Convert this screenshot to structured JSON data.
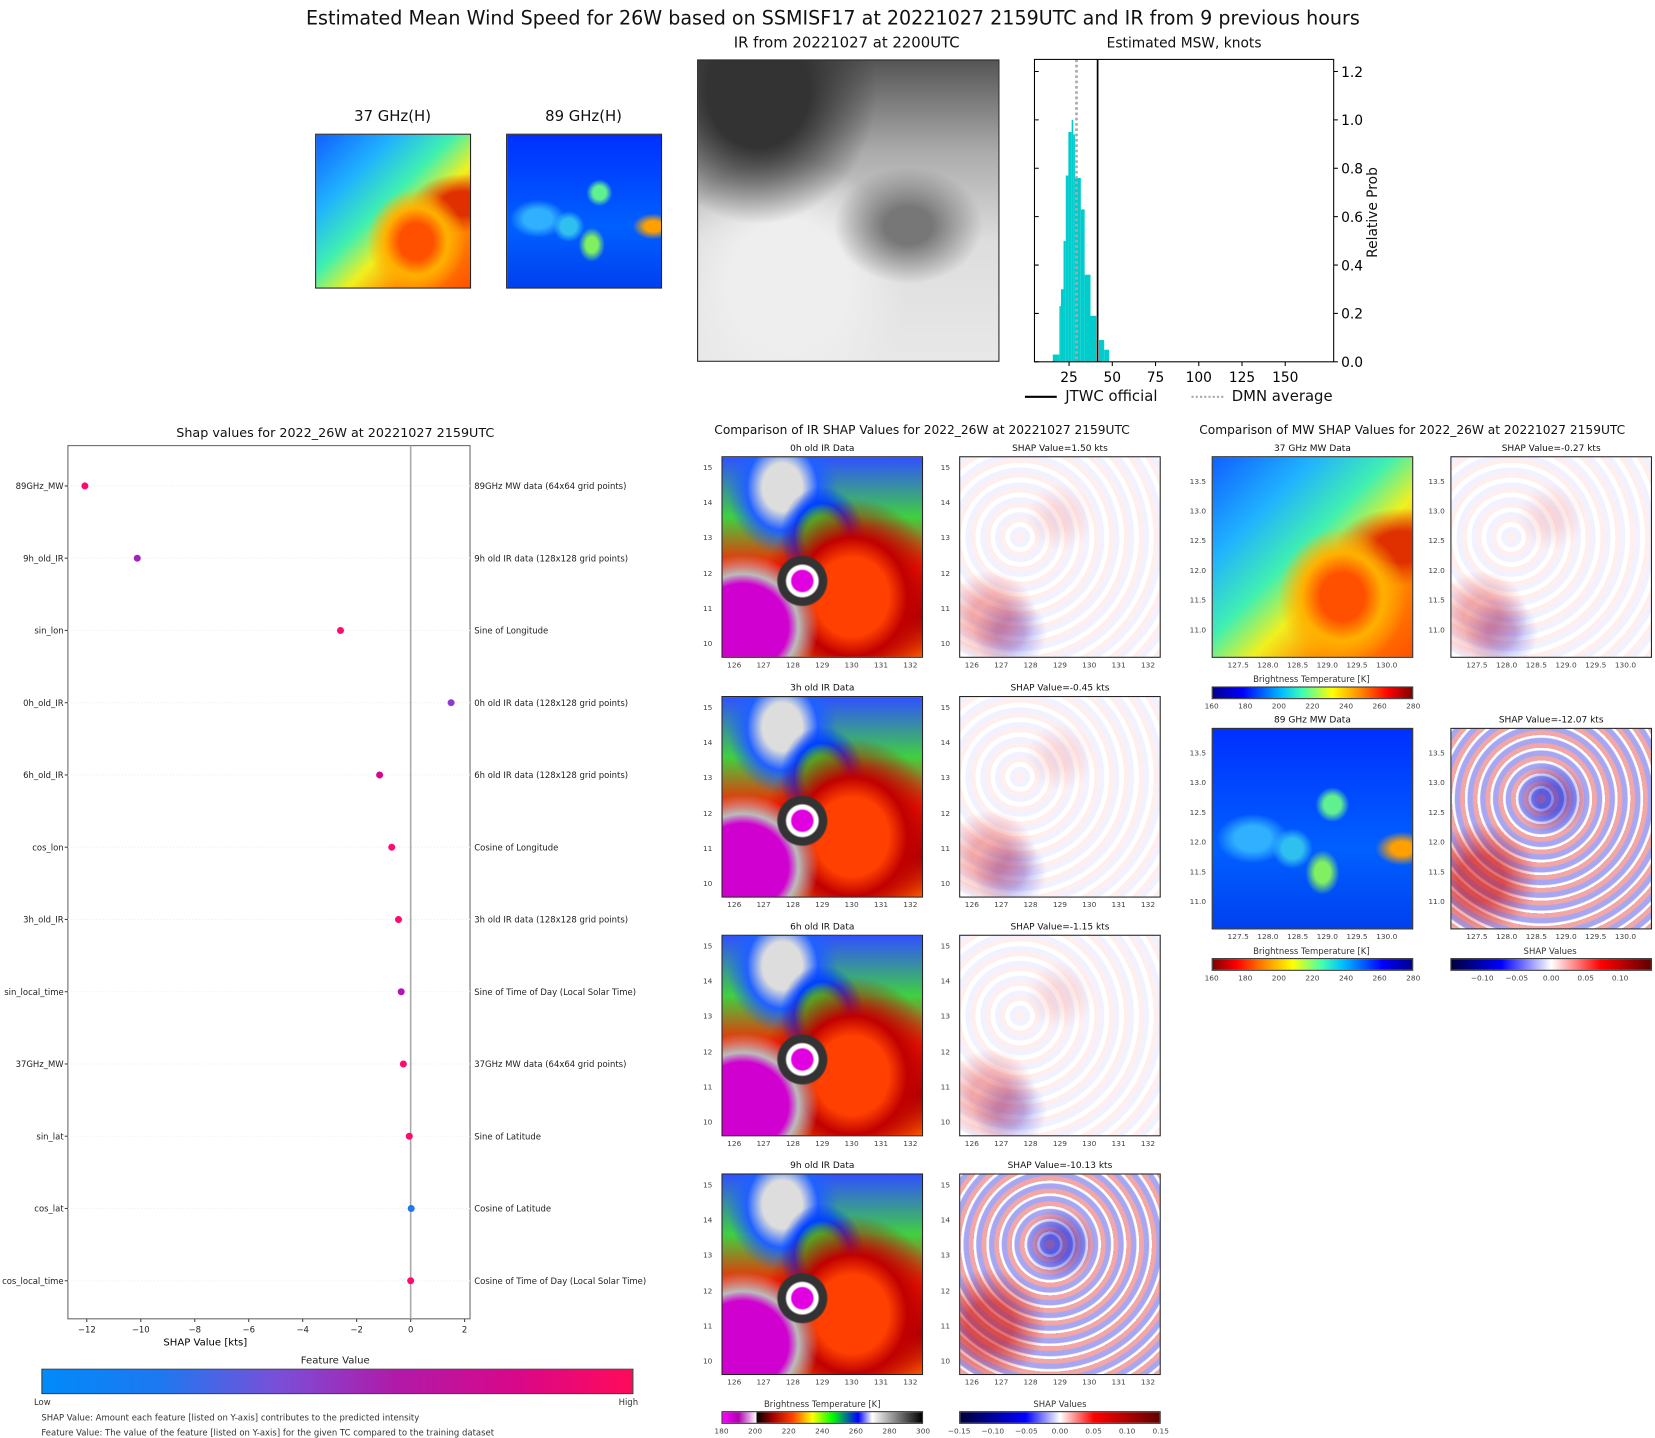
{
  "title": "Estimated Mean Wind Speed for 26W based on SSMISF17 at 20221027 2159UTC and IR from 9 previous hours",
  "top_panels": {
    "mw37_title": "37 GHz(H)",
    "mw89_title": "89 GHz(H)",
    "ir_title": "IR from 20221027 at 2200UTC"
  },
  "chart_data": [
    {
      "type": "bar",
      "title": "Estimated MSW, knots",
      "ylabel": "Relative Prob",
      "xlim": [
        5,
        178
      ],
      "ylim": [
        0,
        1.25
      ],
      "xticks": [
        "25",
        "50",
        "75",
        "100",
        "125",
        "150"
      ],
      "xtick_values": [
        25,
        50,
        75,
        100,
        125,
        150
      ],
      "yticks": [
        "0.0",
        "0.2",
        "0.4",
        "0.6",
        "0.8",
        "1.0",
        "1.2"
      ],
      "ytick_values": [
        0,
        0.2,
        0.4,
        0.6,
        0.8,
        1.0,
        1.2
      ],
      "bins": [
        [
          15.6,
          19.4,
          0.03
        ],
        [
          19.4,
          20.3,
          0.23
        ],
        [
          20.3,
          21.8,
          0.3
        ],
        [
          21.8,
          23.1,
          0.5
        ],
        [
          23.1,
          24.6,
          0.77
        ],
        [
          24.6,
          26.5,
          0.95
        ],
        [
          26.5,
          27.4,
          1.0
        ],
        [
          27.4,
          28.4,
          0.94
        ],
        [
          28.4,
          31.8,
          0.76
        ],
        [
          31.8,
          34.0,
          0.63
        ],
        [
          34.0,
          37.4,
          0.36
        ],
        [
          37.4,
          40.8,
          0.19
        ],
        [
          42.3,
          45.3,
          0.09
        ],
        [
          45.3,
          48.1,
          0.05
        ]
      ],
      "jtwc_official": 41.5,
      "dmn_average": 29.3,
      "color": "#00cccc",
      "legend": {
        "jtwc": "JTWC official",
        "dmn": "DMN average",
        "placement": "bottom"
      }
    },
    {
      "type": "scatter",
      "title": "Shap values for 2022_26W at 20221027 2159UTC",
      "xlabel": "SHAP Value [kts]",
      "xlim": [
        -12.7,
        2.2
      ],
      "xticks": [
        "−12",
        "−10",
        "−8",
        "−6",
        "−4",
        "−2",
        "0",
        "2"
      ],
      "xtick_values": [
        -12,
        -10,
        -8,
        -6,
        -4,
        -2,
        0,
        2
      ],
      "features": [
        {
          "name": "89GHz_MW",
          "desc": "89GHz MW data (64x64 grid points)",
          "shap": -12.07,
          "color": "#ff0a6e"
        },
        {
          "name": "9h_old_IR",
          "desc": "9h old IR data (128x128 grid points)",
          "shap": -10.13,
          "color": "#a61fc4"
        },
        {
          "name": "sin_lon",
          "desc": "Sine of Longitude",
          "shap": -2.6,
          "color": "#ff0a6e"
        },
        {
          "name": "0h_old_IR",
          "desc": "0h old IR data (128x128 grid points)",
          "shap": 1.5,
          "color": "#8f38d6"
        },
        {
          "name": "6h_old_IR",
          "desc": "6h old IR data (128x128 grid points)",
          "shap": -1.15,
          "color": "#d7068e"
        },
        {
          "name": "cos_lon",
          "desc": "Cosine of Longitude",
          "shap": -0.7,
          "color": "#ff0a6e"
        },
        {
          "name": "3h_old_IR",
          "desc": "3h old IR data (128x128 grid points)",
          "shap": -0.45,
          "color": "#ff0a6e"
        },
        {
          "name": "sin_local_time",
          "desc": "Sine of Time of Day (Local Solar Time)",
          "shap": -0.35,
          "color": "#b316b5"
        },
        {
          "name": "37GHz_MW",
          "desc": "37GHz MW data (64x64 grid points)",
          "shap": -0.27,
          "color": "#ff0a6e"
        },
        {
          "name": "sin_lat",
          "desc": "Sine of Latitude",
          "shap": -0.05,
          "color": "#ff0a6e"
        },
        {
          "name": "cos_lat",
          "desc": "Cosine of Latitude",
          "shap": 0.02,
          "color": "#1e78f0"
        },
        {
          "name": "cos_local_time",
          "desc": "Cosine of Time of Day (Local Solar Time)",
          "shap": 0.0,
          "color": "#ff0a6e"
        }
      ],
      "colorbar": {
        "title": "Feature Value",
        "low": "Low",
        "high": "High"
      }
    }
  ],
  "notes": [
    "SHAP Value: Amount each feature [listed on Y-axis] contributes to the predicted intensity",
    "Feature Value: The value of the feature [listed on Y-axis] for the given TC compared to the training dataset"
  ],
  "ir_compare": {
    "title": "Comparison of IR SHAP Values for 2022_26W at 20221027 2159UTC",
    "rows": [
      {
        "data": "0h old IR Data",
        "shap": "SHAP Value=1.50 kts"
      },
      {
        "data": "3h old IR Data",
        "shap": "SHAP Value=-0.45 kts"
      },
      {
        "data": "6h old IR Data",
        "shap": "SHAP Value=-1.15 kts"
      },
      {
        "data": "9h old IR Data",
        "shap": "SHAP Value=-10.13 kts"
      }
    ],
    "xticks": [
      "126",
      "127",
      "128",
      "129",
      "130",
      "131",
      "132"
    ],
    "yticks": [
      "15",
      "14",
      "13",
      "12",
      "11",
      "10"
    ],
    "cb_bt_label": "Brightness Temperature [K]",
    "cb_bt_ticks": [
      "180",
      "200",
      "220",
      "240",
      "260",
      "280",
      "300"
    ],
    "cb_shap_label": "SHAP Values",
    "cb_shap_ticks": [
      "−0.15",
      "−0.10",
      "−0.05",
      "0.00",
      "0.05",
      "0.10",
      "0.15"
    ]
  },
  "mw_compare": {
    "title": "Comparison of MW SHAP Values for 2022_26W at 20221027 2159UTC",
    "rows": [
      {
        "data": "37 GHz MW Data",
        "shap": "SHAP Value=-0.27 kts"
      },
      {
        "data": "89 GHz MW Data",
        "shap": "SHAP Value=-12.07 kts"
      }
    ],
    "xticks": [
      "127.5",
      "128.0",
      "128.5",
      "129.0",
      "129.5",
      "130.0"
    ],
    "yticks": [
      "13.5",
      "13.0",
      "12.5",
      "12.0",
      "11.5",
      "11.0"
    ],
    "cb_bt_label": "Brightness Temperature [K]",
    "cb_bt_ticks": [
      "160",
      "180",
      "200",
      "220",
      "240",
      "260",
      "280"
    ],
    "cb_shap_label": "SHAP Values",
    "cb_shap_ticks": [
      "−0.10",
      "−0.05",
      "0.00",
      "0.05",
      "0.10"
    ]
  }
}
